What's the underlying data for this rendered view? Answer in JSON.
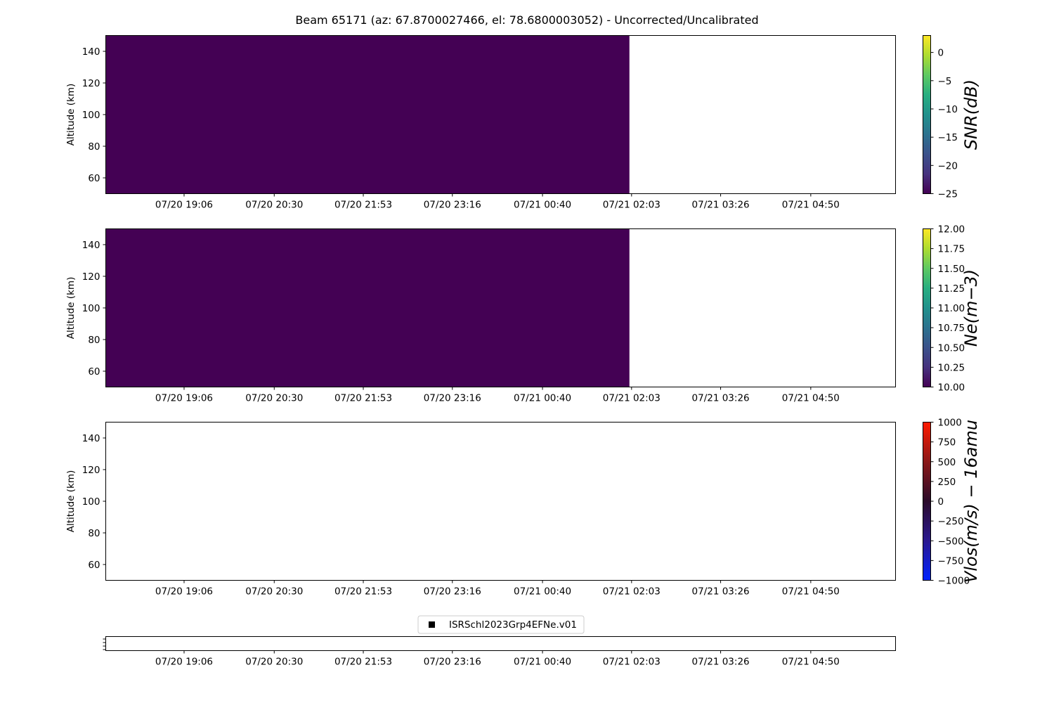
{
  "chart_data": {
    "type": "heatmap",
    "title": "Beam 65171 (az: 67.8700027466, el: 78.6800003052) - Uncorrected/Uncalibrated",
    "x_tick_labels": [
      "07/20 19:06",
      "07/20 20:30",
      "07/20 21:53",
      "07/20 23:16",
      "07/21 00:40",
      "07/21 02:03",
      "07/21 03:26",
      "07/21 04:50"
    ],
    "x_range": [
      "07/20 17:53",
      "07/21 06:09"
    ],
    "data_end_time": "07/21 02:01",
    "panels": [
      {
        "id": "snr",
        "ylabel": "Altitude (km)",
        "ylim": [
          50,
          150
        ],
        "yticks": [
          60,
          80,
          100,
          120,
          140
        ],
        "colorbar_label": "SNR(dB)",
        "colormap": "viridis",
        "vmin": -25,
        "vmax": 3,
        "colorbar_ticks": [
          0,
          -5,
          -10,
          -15,
          -20,
          -25
        ],
        "colorbar_tick_labels": [
          "0",
          "−5",
          "−10",
          "−15",
          "−20",
          "−25"
        ],
        "fill_value": -25,
        "fill_color": "#440154"
      },
      {
        "id": "ne",
        "ylabel": "Altitude (km)",
        "ylim": [
          50,
          150
        ],
        "yticks": [
          60,
          80,
          100,
          120,
          140
        ],
        "colorbar_label": "Ne(m−3)",
        "colormap": "viridis",
        "vmin": 10,
        "vmax": 12,
        "colorbar_ticks": [
          12,
          11.75,
          11.5,
          11.25,
          11,
          10.75,
          10.5,
          10.25,
          10
        ],
        "colorbar_tick_labels": [
          "12.00",
          "11.75",
          "11.50",
          "11.25",
          "11.00",
          "10.75",
          "10.50",
          "10.25",
          "10.00"
        ],
        "fill_value": 10,
        "fill_color": "#440154"
      },
      {
        "id": "vlos",
        "ylabel": "Altitude (km)",
        "ylim": [
          50,
          150
        ],
        "yticks": [
          60,
          80,
          100,
          120,
          140
        ],
        "colorbar_label": "Vlos(m/s) − 16amu",
        "colormap": "bwr-dark",
        "vmin": -1000,
        "vmax": 1000,
        "colorbar_ticks": [
          1000,
          750,
          500,
          250,
          0,
          -250,
          -500,
          -750,
          -1000
        ],
        "colorbar_tick_labels": [
          "1000",
          "750",
          "500",
          "250",
          "0",
          "−250",
          "−500",
          "−750",
          "−1000"
        ],
        "fill_value": null,
        "fill_color": null
      }
    ],
    "legend": {
      "label": "ISRSchl2023Grp4EFNe.v01",
      "marker": "square",
      "color": "#000000",
      "placement": "top-center"
    },
    "grid": false
  }
}
